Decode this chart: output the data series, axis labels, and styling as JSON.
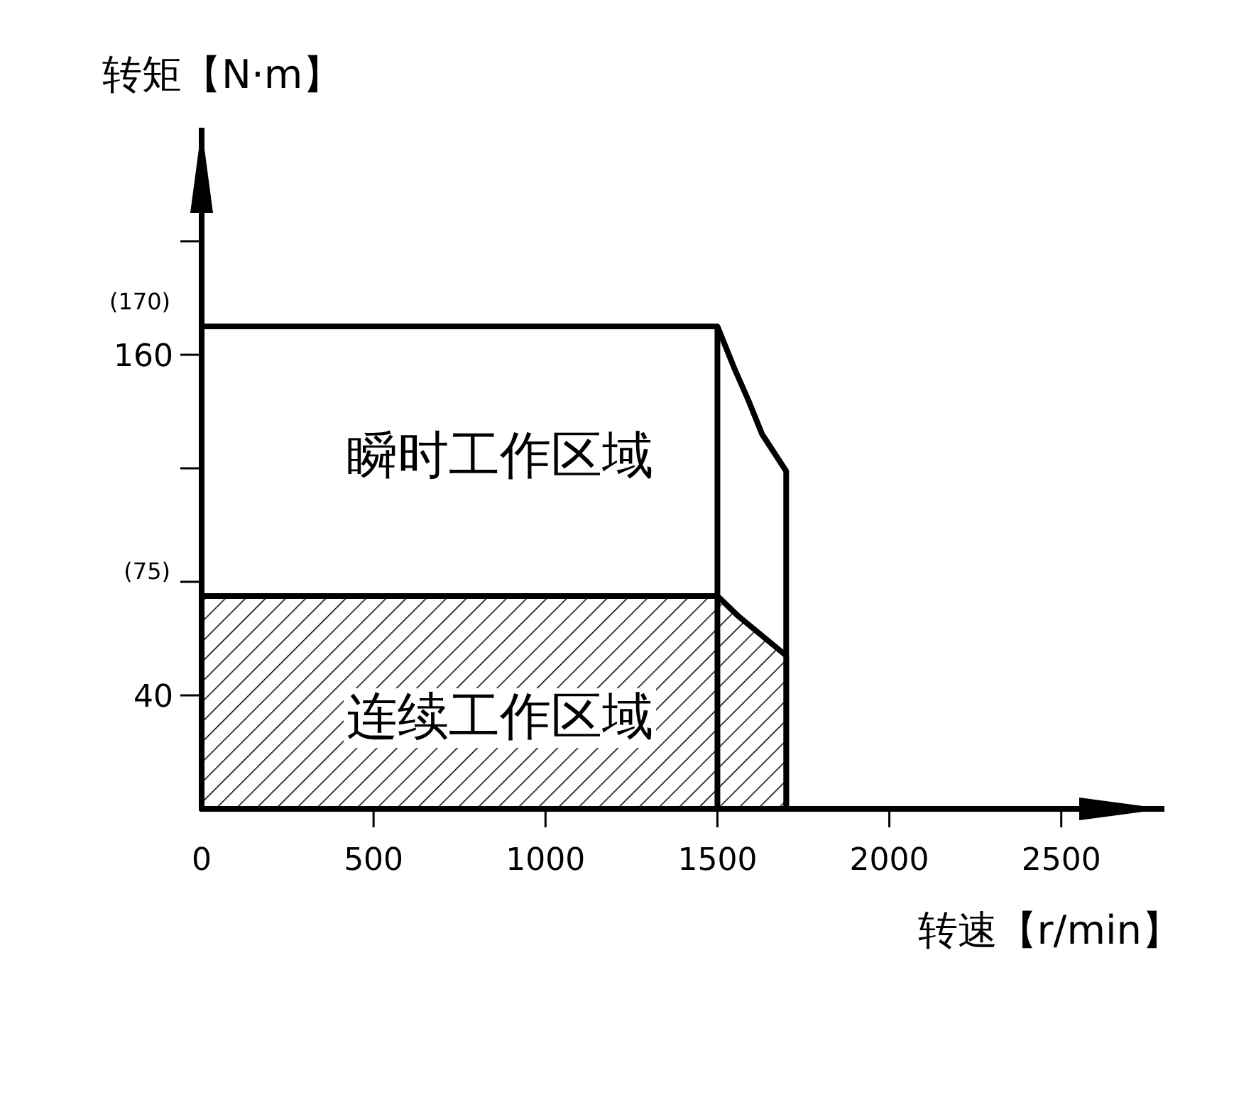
{
  "chart_data": {
    "type": "area",
    "xlabel": "转速【r/min】",
    "ylabel": "转矩【N·m】",
    "xlim": [
      0,
      2800
    ],
    "ylim": [
      0,
      240
    ],
    "xticks": [
      0,
      500,
      1000,
      1500,
      2000,
      2500
    ],
    "yticks": [
      {
        "value": 0,
        "label": null
      },
      40,
      {
        "value": 80,
        "label": null
      },
      {
        "value": 120,
        "label": null
      },
      160,
      {
        "value": 200,
        "label": null
      }
    ],
    "series": [
      {
        "color": "#ffffff",
        "x": [
          0,
          1500,
          1550,
          1590,
          1630,
          1700
        ],
        "values": [
          170,
          170,
          155,
          144,
          132,
          119
        ]
      },
      {
        "color": "#000000",
        "x": [
          0,
          1500,
          1560,
          1620,
          1700
        ],
        "values": [
          75,
          75,
          68,
          62,
          54
        ]
      }
    ],
    "ref_lines": [
      {
        "axis": "x",
        "value": 1500,
        "color": "#000000"
      }
    ],
    "annotations": [
      {
        "text": "(170)",
        "x": 0,
        "y": 170
      },
      {
        "text": "(75)",
        "x": 0,
        "y": 75
      },
      "瞬时工作区域",
      "连续工作区域"
    ],
    "grid": false
  }
}
